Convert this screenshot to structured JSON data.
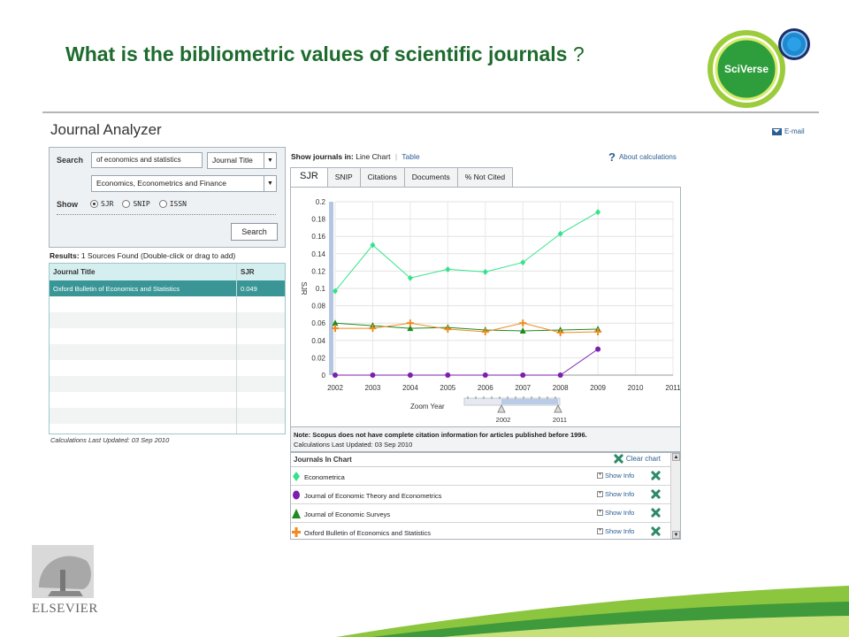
{
  "slide": {
    "title": "What is the bibliometric values of scientific journals",
    "title_suffix": "?",
    "logo_text": "SciVerse",
    "publisher": "ELSEVIER"
  },
  "app": {
    "title": "Journal Analyzer",
    "email_label": "E-mail"
  },
  "search": {
    "label": "Search",
    "query_value": "of economics and statistics",
    "field_select": "Journal Title",
    "category_select": "Economics, Econometrics and Finance",
    "show_label": "Show",
    "options": [
      "SJR",
      "SNIP",
      "ISSN"
    ],
    "selected_option": "SJR",
    "button_label": "Search"
  },
  "results": {
    "label": "Results:",
    "summary": "1 Sources Found (Double-click or drag to add)",
    "columns": [
      "Journal Title",
      "SJR"
    ],
    "rows": [
      {
        "title": "Oxford Bulletin of Economics and Statistics",
        "sjr": "0.049"
      }
    ],
    "calc_updated": "Calculations Last Updated: 03 Sep 2010"
  },
  "view": {
    "show_in_label": "Show journals in:",
    "line_chart": "Line Chart",
    "table": "Table",
    "about": "About calculations",
    "tabs": [
      "SJR",
      "SNIP",
      "Citations",
      "Documents",
      "% Not Cited"
    ],
    "active_tab": "SJR"
  },
  "chart_data": {
    "type": "line",
    "ylabel": "SJR",
    "xlabel": "",
    "x": [
      2002,
      2003,
      2004,
      2005,
      2006,
      2007,
      2008,
      2009
    ],
    "x_ticks": [
      2002,
      2003,
      2004,
      2005,
      2006,
      2007,
      2008,
      2009,
      2010,
      2011
    ],
    "y_ticks": [
      "0",
      "0.02",
      "0.04",
      "0.06",
      "0.08",
      "0.1",
      "0.12",
      "0.14",
      "0.16",
      "0.18",
      "0.2"
    ],
    "ylim": [
      0,
      0.2
    ],
    "xlim": [
      2002,
      2011
    ],
    "grid": true,
    "series": [
      {
        "name": "Econometrica",
        "color": "#33e38a",
        "marker": "diamond",
        "values": [
          0.097,
          0.15,
          0.112,
          0.122,
          0.119,
          0.13,
          0.163,
          0.188
        ]
      },
      {
        "name": "Journal of Economic Theory and Econometrics",
        "color": "#7a1fb0",
        "marker": "circle",
        "values": [
          0.0,
          0.0,
          0.0,
          0.0,
          0.0,
          0.0,
          0.0,
          0.03
        ]
      },
      {
        "name": "Journal of Economic Surveys",
        "color": "#1f8a1f",
        "marker": "triangle",
        "values": [
          0.06,
          0.057,
          0.054,
          0.055,
          0.052,
          0.051,
          0.052,
          0.053
        ]
      },
      {
        "name": "Oxford Bulletin of Economics and Statistics",
        "color": "#f28a1f",
        "marker": "cross",
        "values": [
          0.054,
          0.054,
          0.06,
          0.053,
          0.05,
          0.06,
          0.049,
          0.05
        ]
      }
    ],
    "zoom": {
      "label": "Zoom Year",
      "start": "2002",
      "end": "2011"
    }
  },
  "note": {
    "text": "Note: Scopus does not have complete citation information for articles published before 1996.",
    "calc_updated": "Calculations Last Updated: 03 Sep 2010"
  },
  "journals_in_chart": {
    "label": "Journals In Chart",
    "clear_label": "Clear chart",
    "show_info_label": "Show Info",
    "items": [
      "Econometrica",
      "Journal of Economic Theory and Econometrics",
      "Journal of Economic Surveys",
      "Oxford Bulletin of Economics and Statistics"
    ]
  }
}
